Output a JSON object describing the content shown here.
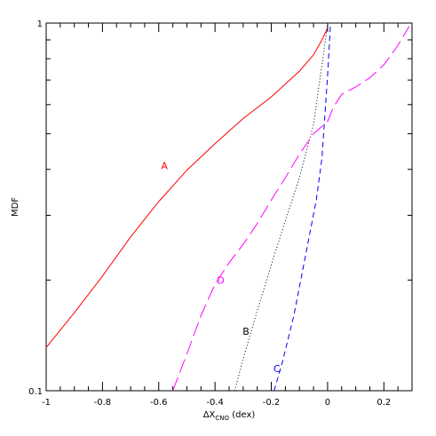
{
  "chart_data": {
    "type": "line",
    "title": "",
    "xlabel": {
      "delta": "ΔX",
      "sub": "CNO",
      "unit": " (dex)"
    },
    "ylabel": "MDF",
    "xlim": [
      -1.0,
      0.3
    ],
    "ylim": [
      0.1,
      1.0
    ],
    "yscale": "log",
    "grid": false,
    "legend": "none",
    "x_ticks": [
      -1,
      -0.8,
      -0.6,
      -0.4,
      -0.2,
      0,
      0.2
    ],
    "x_tick_labels": [
      "-1",
      "-0.8",
      "-0.6",
      "-0.4",
      "-0.2",
      "0",
      "0.2"
    ],
    "y_ticks": [
      0.1,
      1
    ],
    "y_tick_labels": [
      "0.1",
      "1"
    ],
    "series": [
      {
        "name": "A",
        "color": "#ff0000",
        "style": "solid",
        "label_at": [
          -0.58,
          0.41
        ],
        "x": [
          -1.0,
          -0.9,
          -0.8,
          -0.7,
          -0.6,
          -0.5,
          -0.4,
          -0.3,
          -0.2,
          -0.1,
          -0.05,
          -0.02,
          0.0
        ],
        "y": [
          0.131,
          0.163,
          0.205,
          0.262,
          0.327,
          0.398,
          0.47,
          0.55,
          0.63,
          0.74,
          0.82,
          0.9,
          0.97
        ]
      },
      {
        "name": "B",
        "color": "#000000",
        "style": "dotted",
        "label_at": [
          -0.29,
          0.145
        ],
        "x": [
          -0.33,
          -0.3,
          -0.25,
          -0.2,
          -0.15,
          -0.1,
          -0.05,
          0.0
        ],
        "y": [
          0.1,
          0.122,
          0.165,
          0.22,
          0.29,
          0.38,
          0.53,
          0.99
        ]
      },
      {
        "name": "C",
        "color": "#0000ff",
        "style": "dashed",
        "label_at": [
          -0.18,
          0.115
        ],
        "x": [
          -0.19,
          -0.16,
          -0.12,
          -0.08,
          -0.04,
          -0.02,
          0.0,
          0.01
        ],
        "y": [
          0.1,
          0.12,
          0.16,
          0.23,
          0.33,
          0.43,
          0.72,
          0.98
        ]
      },
      {
        "name": "D",
        "color": "#ff00ff",
        "style": "longdash",
        "label_at": [
          -0.38,
          0.2
        ],
        "x": [
          -0.55,
          -0.5,
          -0.45,
          -0.4,
          -0.35,
          -0.3,
          -0.25,
          -0.2,
          -0.15,
          -0.1,
          -0.05,
          0.0,
          0.02,
          0.05,
          0.1,
          0.15,
          0.2,
          0.25,
          0.29
        ],
        "y": [
          0.1,
          0.126,
          0.16,
          0.195,
          0.223,
          0.25,
          0.285,
          0.33,
          0.38,
          0.44,
          0.5,
          0.54,
          0.59,
          0.64,
          0.67,
          0.71,
          0.77,
          0.87,
          0.98
        ]
      }
    ]
  }
}
